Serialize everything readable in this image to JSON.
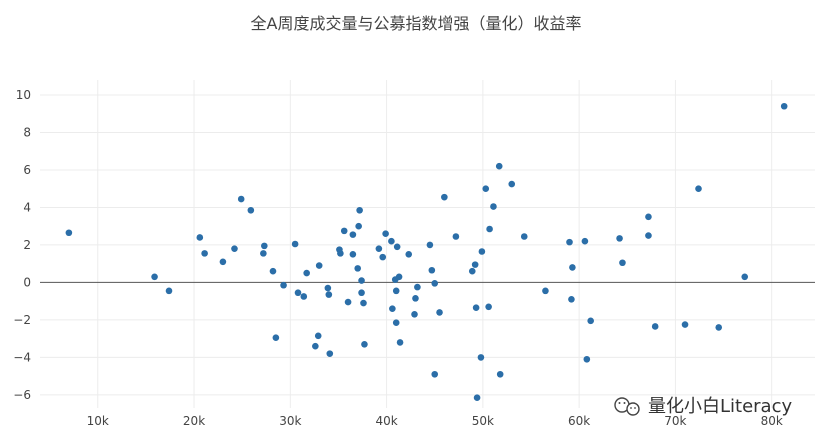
{
  "chart_data": {
    "type": "scatter",
    "title": "全A周度成交量与公募指数增强（量化）收益率",
    "xlabel": "",
    "ylabel": "",
    "xlim": [
      4000,
      84500
    ],
    "ylim": [
      -6.7,
      10.8
    ],
    "x_ticks": [
      10000,
      20000,
      30000,
      40000,
      50000,
      60000,
      70000,
      80000
    ],
    "x_tick_labels": [
      "10k",
      "20k",
      "30k",
      "40k",
      "50k",
      "60k",
      "70k",
      "80k"
    ],
    "y_ticks": [
      -6,
      -4,
      -2,
      0,
      2,
      4,
      6,
      8,
      10
    ],
    "y_tick_labels": [
      "−6",
      "−4",
      "−2",
      "0",
      "2",
      "4",
      "6",
      "8",
      "10"
    ],
    "grid": true,
    "color": "#2b6ea8",
    "points": [
      [
        7000,
        2.65
      ],
      [
        15900,
        0.3
      ],
      [
        17400,
        -0.45
      ],
      [
        20600,
        2.4
      ],
      [
        21100,
        1.55
      ],
      [
        23000,
        1.1
      ],
      [
        24200,
        1.8
      ],
      [
        24900,
        4.45
      ],
      [
        25900,
        3.85
      ],
      [
        27200,
        1.55
      ],
      [
        27300,
        1.95
      ],
      [
        28200,
        0.6
      ],
      [
        28500,
        -2.95
      ],
      [
        29300,
        -0.15
      ],
      [
        30500,
        2.05
      ],
      [
        30800,
        -0.55
      ],
      [
        31400,
        -0.75
      ],
      [
        31700,
        0.5
      ],
      [
        32600,
        -3.4
      ],
      [
        32900,
        -2.85
      ],
      [
        33000,
        0.9
      ],
      [
        33900,
        -0.3
      ],
      [
        34000,
        -0.65
      ],
      [
        34100,
        -3.8
      ],
      [
        35100,
        1.75
      ],
      [
        35200,
        1.55
      ],
      [
        35600,
        2.75
      ],
      [
        36000,
        -1.05
      ],
      [
        36500,
        2.55
      ],
      [
        36500,
        1.5
      ],
      [
        37000,
        0.75
      ],
      [
        37100,
        3.0
      ],
      [
        37200,
        3.85
      ],
      [
        37400,
        0.1
      ],
      [
        37400,
        -0.55
      ],
      [
        37600,
        -1.1
      ],
      [
        37700,
        -3.3
      ],
      [
        39200,
        1.8
      ],
      [
        39600,
        1.35
      ],
      [
        39900,
        2.6
      ],
      [
        40500,
        2.2
      ],
      [
        40600,
        -1.4
      ],
      [
        40900,
        0.15
      ],
      [
        41000,
        -0.45
      ],
      [
        41000,
        -2.15
      ],
      [
        41100,
        1.9
      ],
      [
        41300,
        0.3
      ],
      [
        41400,
        -3.2
      ],
      [
        42300,
        1.5
      ],
      [
        42900,
        -1.7
      ],
      [
        43000,
        -0.85
      ],
      [
        43200,
        -0.25
      ],
      [
        44500,
        2.0
      ],
      [
        44700,
        0.65
      ],
      [
        45000,
        -0.05
      ],
      [
        45000,
        -4.9
      ],
      [
        45500,
        -1.6
      ],
      [
        46000,
        4.55
      ],
      [
        47200,
        2.45
      ],
      [
        48900,
        0.6
      ],
      [
        49200,
        0.95
      ],
      [
        49300,
        -1.35
      ],
      [
        49400,
        -6.15
      ],
      [
        49800,
        -4.0
      ],
      [
        49900,
        1.65
      ],
      [
        50300,
        5.0
      ],
      [
        50600,
        -1.3
      ],
      [
        50700,
        2.85
      ],
      [
        51100,
        4.05
      ],
      [
        51700,
        6.2
      ],
      [
        51800,
        -4.9
      ],
      [
        53000,
        5.25
      ],
      [
        54300,
        2.45
      ],
      [
        56500,
        -0.45
      ],
      [
        59000,
        2.15
      ],
      [
        59200,
        -0.9
      ],
      [
        59300,
        0.8
      ],
      [
        60600,
        2.2
      ],
      [
        60800,
        -4.1
      ],
      [
        61200,
        -2.05
      ],
      [
        64200,
        2.35
      ],
      [
        64500,
        1.05
      ],
      [
        67200,
        2.5
      ],
      [
        67200,
        3.5
      ],
      [
        67900,
        -2.35
      ],
      [
        71000,
        -2.25
      ],
      [
        72400,
        5.0
      ],
      [
        74500,
        -2.4
      ],
      [
        77200,
        0.3
      ],
      [
        81300,
        9.4
      ]
    ]
  },
  "watermark": {
    "icon": "wechat-icon",
    "text": "量化小白Literacy"
  }
}
